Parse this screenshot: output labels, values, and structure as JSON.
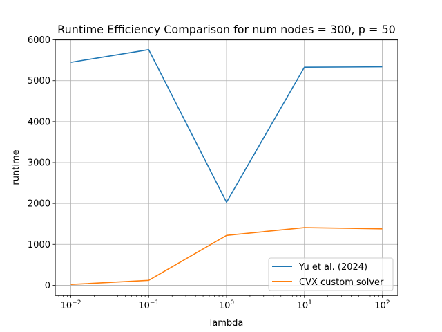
{
  "chart_data": {
    "type": "line",
    "title": "Runtime Efficiency Comparison for num nodes = 300, p = 50",
    "xlabel": "lambda",
    "ylabel": "runtime",
    "xscale": "log",
    "x": [
      0.01,
      0.1,
      1,
      10,
      100
    ],
    "x_tick_labels": [
      {
        "base": "10",
        "exp": "−2"
      },
      {
        "base": "10",
        "exp": "−1"
      },
      {
        "base": "10",
        "exp": "0"
      },
      {
        "base": "10",
        "exp": "1"
      },
      {
        "base": "10",
        "exp": "2"
      }
    ],
    "y_ticks": [
      0,
      1000,
      2000,
      3000,
      4000,
      5000,
      6000
    ],
    "ylim": [
      -250,
      6000
    ],
    "grid": true,
    "legend_position": "lower-right",
    "series": [
      {
        "name": "Yu et al. (2024)",
        "color": "#1f77b4",
        "values": [
          5450,
          5760,
          2030,
          5330,
          5340
        ]
      },
      {
        "name": "CVX custom solver",
        "color": "#ff7f0e",
        "values": [
          20,
          120,
          1220,
          1410,
          1380
        ]
      }
    ]
  }
}
